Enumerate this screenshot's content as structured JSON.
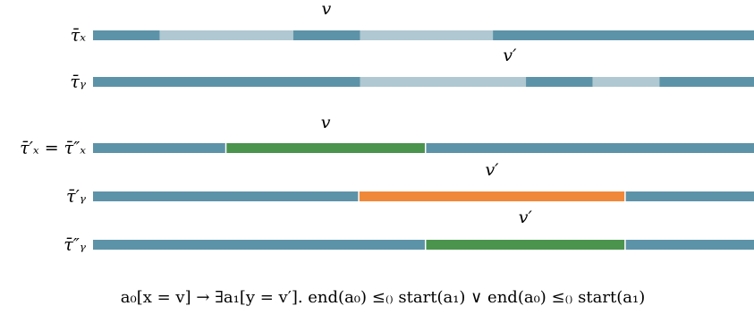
{
  "colors": {
    "base": "#5d93a8",
    "light": "#afc8d2",
    "green": "#4a944e",
    "orange": "#f0883a",
    "separator": "#ffffff"
  },
  "rows": [
    {
      "id": "tau-x",
      "label": "τ̄ₓ",
      "segments": [
        {
          "start": 0.0,
          "end": 0.101,
          "color": "base"
        },
        {
          "start": 0.101,
          "end": 0.303,
          "color": "light"
        },
        {
          "start": 0.303,
          "end": 0.404,
          "color": "base"
        },
        {
          "start": 0.404,
          "end": 0.605,
          "color": "light"
        },
        {
          "start": 0.605,
          "end": 1.0,
          "color": "base"
        }
      ],
      "annotation": "v"
    },
    {
      "id": "tau-y",
      "label": "τ̄ᵧ",
      "segments": [
        {
          "start": 0.0,
          "end": 0.404,
          "color": "base"
        },
        {
          "start": 0.404,
          "end": 0.655,
          "color": "light"
        },
        {
          "start": 0.655,
          "end": 0.756,
          "color": "base"
        },
        {
          "start": 0.756,
          "end": 0.857,
          "color": "light"
        },
        {
          "start": 0.857,
          "end": 1.0,
          "color": "base"
        }
      ],
      "annotation": "v′"
    },
    {
      "id": "tau-x-prime",
      "label": "τ̄′ₓ = τ̄″ₓ",
      "segments": [
        {
          "start": 0.0,
          "end": 0.201,
          "color": "base"
        },
        {
          "start": 0.201,
          "end": 0.503,
          "color": "green"
        },
        {
          "start": 0.503,
          "end": 1.0,
          "color": "base"
        }
      ],
      "annotation": "v"
    },
    {
      "id": "tau-y-prime",
      "label": "τ̄′ᵧ",
      "segments": [
        {
          "start": 0.0,
          "end": 0.402,
          "color": "base"
        },
        {
          "start": 0.402,
          "end": 0.805,
          "color": "orange"
        },
        {
          "start": 0.805,
          "end": 1.0,
          "color": "base"
        }
      ],
      "annotation": "v′"
    },
    {
      "id": "tau-y-double-prime",
      "label": "τ̄″ᵧ",
      "segments": [
        {
          "start": 0.0,
          "end": 0.503,
          "color": "base"
        },
        {
          "start": 0.503,
          "end": 0.805,
          "color": "green"
        },
        {
          "start": 0.805,
          "end": 1.0,
          "color": "base"
        }
      ],
      "annotation": "v′"
    }
  ],
  "formula": "a₀[x = v] → ∃a₁[y = v′]. end(a₀) ≤₍₎ start(a₁) ∨ end(a₀) ≤₍₎ start(a₁)"
}
